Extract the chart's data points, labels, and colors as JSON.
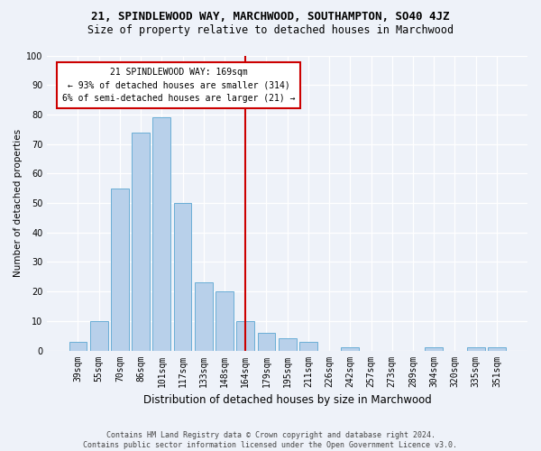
{
  "title": "21, SPINDLEWOOD WAY, MARCHWOOD, SOUTHAMPTON, SO40 4JZ",
  "subtitle": "Size of property relative to detached houses in Marchwood",
  "xlabel": "Distribution of detached houses by size in Marchwood",
  "ylabel": "Number of detached properties",
  "categories": [
    "39sqm",
    "55sqm",
    "70sqm",
    "86sqm",
    "101sqm",
    "117sqm",
    "133sqm",
    "148sqm",
    "164sqm",
    "179sqm",
    "195sqm",
    "211sqm",
    "226sqm",
    "242sqm",
    "257sqm",
    "273sqm",
    "289sqm",
    "304sqm",
    "320sqm",
    "335sqm",
    "351sqm"
  ],
  "values": [
    3,
    10,
    55,
    74,
    79,
    50,
    23,
    20,
    10,
    6,
    4,
    3,
    0,
    1,
    0,
    0,
    0,
    1,
    0,
    1,
    1
  ],
  "bar_color": "#b8d0ea",
  "bar_edge_color": "#6aaed6",
  "reference_line_x": 8,
  "annotation_line1": "21 SPINDLEWOOD WAY: 169sqm",
  "annotation_line2": "← 93% of detached houses are smaller (314)",
  "annotation_line3": "6% of semi-detached houses are larger (21) →",
  "annotation_box_color": "#ffffff",
  "annotation_box_edge_color": "#cc0000",
  "ylim": [
    0,
    100
  ],
  "yticks": [
    0,
    10,
    20,
    30,
    40,
    50,
    60,
    70,
    80,
    90,
    100
  ],
  "footer_line1": "Contains HM Land Registry data © Crown copyright and database right 2024.",
  "footer_line2": "Contains public sector information licensed under the Open Government Licence v3.0.",
  "bg_color": "#eef2f9",
  "plot_bg_color": "#eef2f9",
  "grid_color": "#ffffff",
  "title_fontsize": 9,
  "subtitle_fontsize": 8.5,
  "xlabel_fontsize": 8.5,
  "ylabel_fontsize": 7.5,
  "tick_fontsize": 7,
  "annotation_fontsize": 7,
  "footer_fontsize": 6
}
